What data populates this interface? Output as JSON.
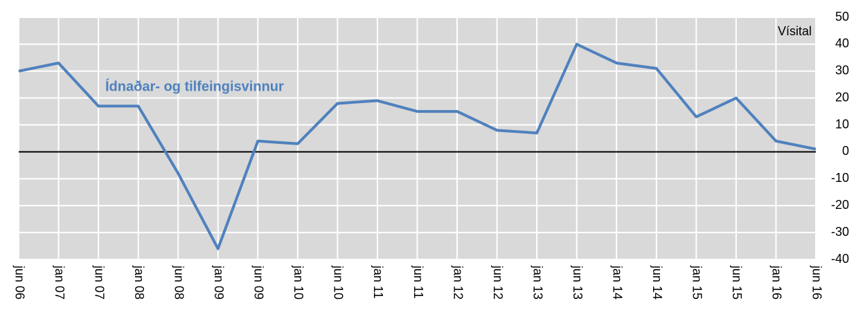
{
  "chart_data": {
    "type": "line",
    "categories": [
      "jun 06",
      "jan 07",
      "jun 07",
      "jan 08",
      "jun 08",
      "jan 09",
      "jun 09",
      "jan 10",
      "jun 10",
      "jan 11",
      "jun 11",
      "jan 12",
      "jun 12",
      "jan 13",
      "jun 13",
      "jan 14",
      "jun 14",
      "jan 15",
      "jun 15",
      "jan 16",
      "jun 16"
    ],
    "series": [
      {
        "name": "Ídnaðar- og tilfeingisvinnur",
        "color": "#4f81bd",
        "values": [
          30,
          33,
          17,
          17,
          -8,
          -36,
          4,
          3,
          18,
          19,
          15,
          15,
          8,
          7,
          40,
          33,
          31,
          13,
          20,
          4,
          1
        ]
      }
    ],
    "y_axis_label": "Vísital",
    "ylim": [
      -40,
      50
    ],
    "yticks": [
      -40,
      -30,
      -20,
      -10,
      0,
      10,
      20,
      30,
      40,
      50
    ],
    "grid": true,
    "background": "#d9d9d9"
  }
}
